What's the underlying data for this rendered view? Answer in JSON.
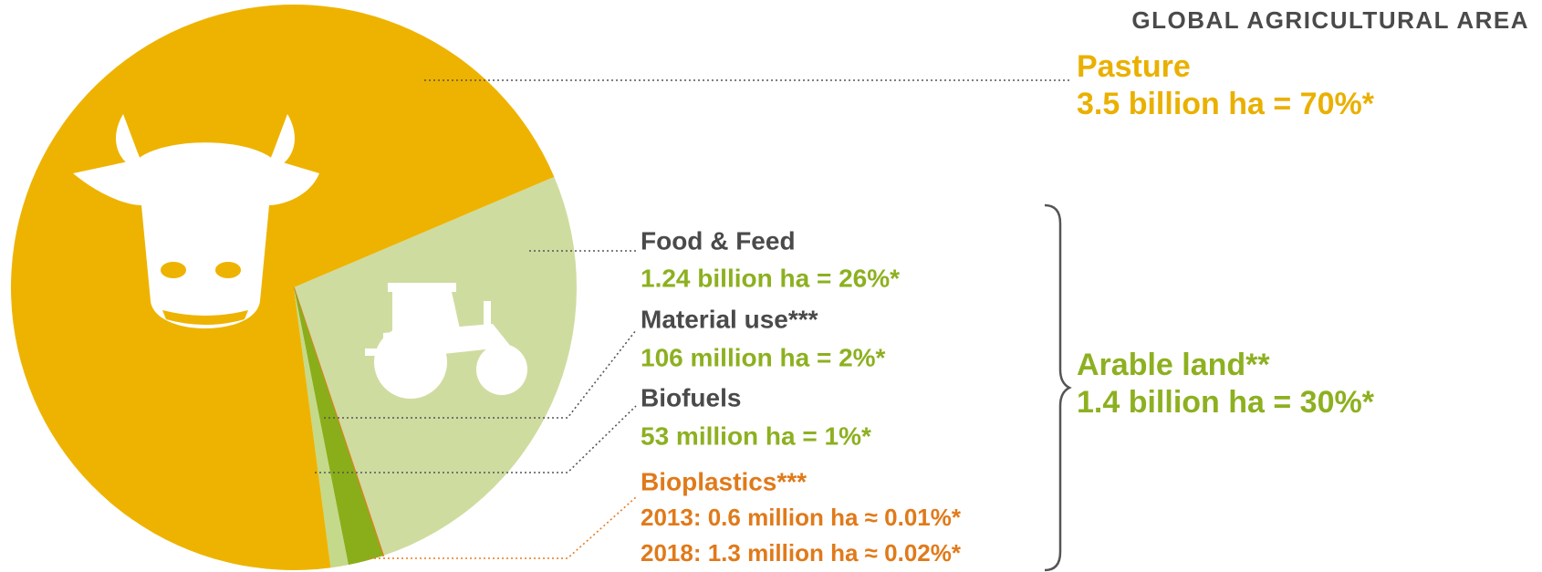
{
  "chart_data": {
    "type": "pie",
    "title": "GLOBAL AGRICULTURAL AREA",
    "slices": [
      {
        "name": "Food & Feed",
        "value": 26,
        "color": "#cfdca0",
        "label": "1.24 billion ha = 26%*"
      },
      {
        "name": "Bioplastics***",
        "value": 0.02,
        "color": "#e87b1e",
        "labels": [
          "2013: 0.6 million ha ≈ 0.01%*",
          "2018: 1.3 million ha ≈ 0.02%*"
        ]
      },
      {
        "name": "Material use***",
        "value": 2,
        "color": "#8aae1a",
        "label": "106 million ha = 2%*"
      },
      {
        "name": "Biofuels",
        "value": 1,
        "color": "#c5d98a",
        "label": "53 million ha = 1%*"
      },
      {
        "name": "Pasture",
        "value": 70,
        "color": "#eeb300",
        "label": "3.5 billion ha = 70%*"
      }
    ],
    "group": {
      "name": "Arable land**",
      "label": "1.4 billion ha = 30%*"
    }
  }
}
